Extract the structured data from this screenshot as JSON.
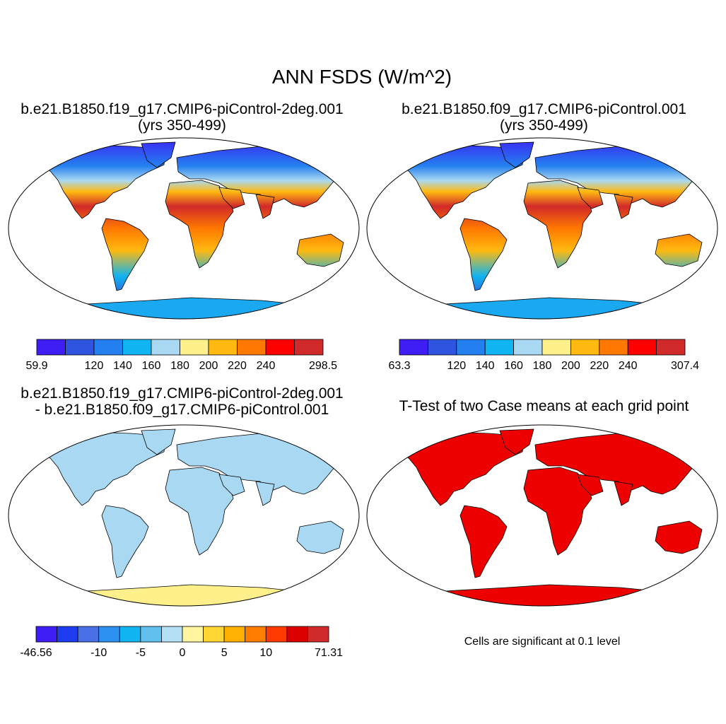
{
  "figure": {
    "title": "ANN FSDS (W/m^2)"
  },
  "panels": [
    {
      "title_line1": "b.e21.B1850.f19_g17.CMIP6-piControl-2deg.001",
      "title_line2": "(yrs 350-499)",
      "colorbar": {
        "colors": [
          "#3e1ef5",
          "#2f55e0",
          "#2480f0",
          "#10b4f0",
          "#a9d8f2",
          "#fff08c",
          "#ffb90f",
          "#ff7800",
          "#ff0000",
          "#d12a2a"
        ],
        "labels": [
          "59.9",
          "",
          "120",
          "140",
          "160",
          "180",
          "200",
          "220",
          "240",
          "",
          "298.5"
        ]
      }
    },
    {
      "title_line1": "b.e21.B1850.f09_g17.CMIP6-piControl.001",
      "title_line2": "(yrs 350-499)",
      "colorbar": {
        "colors": [
          "#3e1ef5",
          "#2f55e0",
          "#2480f0",
          "#10b4f0",
          "#a9d8f2",
          "#fff08c",
          "#ffb90f",
          "#ff7800",
          "#ff0000",
          "#d12a2a"
        ],
        "labels": [
          "63.3",
          "",
          "120",
          "140",
          "160",
          "180",
          "200",
          "220",
          "240",
          "",
          "307.4"
        ]
      }
    },
    {
      "title_line1": "b.e21.B1850.f19_g17.CMIP6-piControl-2deg.001",
      "title_line2": "- b.e21.B1850.f09_g17.CMIP6-piControl.001",
      "colorbar": {
        "colors": [
          "#3e1ef5",
          "#1e3cf0",
          "#4a70e8",
          "#2b90f0",
          "#10b4f0",
          "#62c0ee",
          "#b3e0f5",
          "#fff5a0",
          "#ffd633",
          "#ffb000",
          "#ff7d00",
          "#ff3a00",
          "#dd0000",
          "#d12a2a"
        ],
        "labels": [
          "-46.56",
          "",
          "",
          "-10",
          "",
          "-5",
          "",
          "0",
          "",
          "5",
          "",
          "10",
          "",
          "",
          "71.31"
        ]
      }
    },
    {
      "title_line1": "T-Test of two Case means at each grid point",
      "note": "Cells are significant at 0.1 level"
    }
  ],
  "map_colors": {
    "ocean": "#ffffff",
    "outline": "#000000",
    "cold": "#3a4fe0",
    "warm": "#ff7800",
    "hot": "#d12a2a",
    "antarctic": "#1aa8f0",
    "diff_neutral": "#a9d8f2",
    "diff_pos": "#fff08c",
    "significant": "#ee0000"
  }
}
